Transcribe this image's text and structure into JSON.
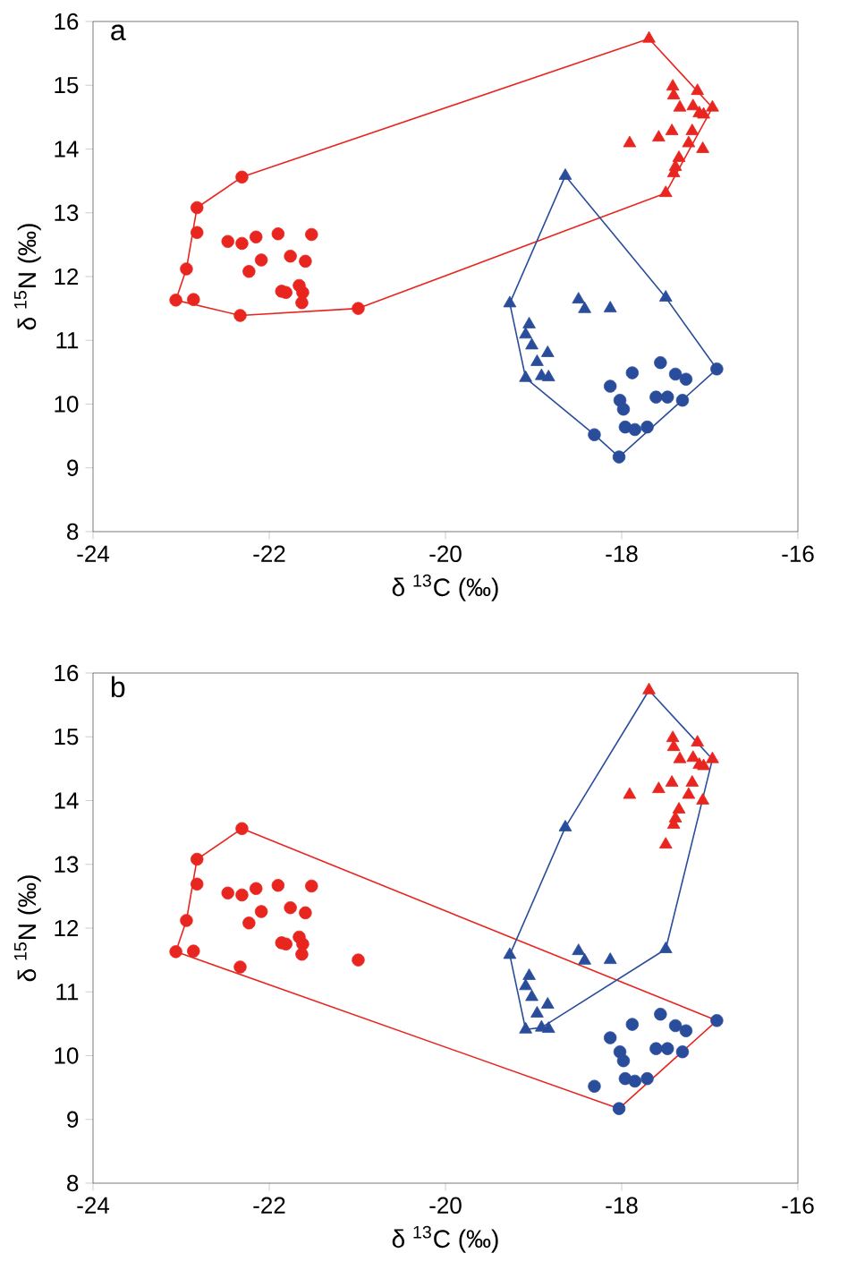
{
  "chart_data": [
    {
      "type": "scatter",
      "title": "a",
      "xlabel": "δ $^{13}$C (‰)",
      "ylabel": "δ $^{15}$N (‰)",
      "xlim": [
        -24,
        -16
      ],
      "xticks": [
        -24,
        -22,
        -20,
        -18,
        -16
      ],
      "ylim": [
        8,
        16
      ],
      "yticks": [
        8,
        9,
        10,
        11,
        12,
        13,
        14,
        15,
        16
      ],
      "grid": false,
      "series": [
        {
          "type": "line",
          "marker": "none",
          "line_style": "solid",
          "color": "#e8251f",
          "x": [
            -23.06,
            -22.94,
            -22.82,
            -22.31,
            -17.69,
            -16.97
          ],
          "values": [
            11.63,
            12.12,
            13.08,
            13.56,
            15.73,
            14.65
          ]
        },
        {
          "type": "line",
          "marker": "none",
          "line_style": "solid",
          "color": "#e8251f",
          "x": [
            -23.06,
            -22.33,
            -20.99,
            -17.5,
            -16.97
          ],
          "values": [
            11.63,
            11.39,
            11.5,
            13.31,
            14.65
          ]
        },
        {
          "type": "line",
          "marker": "none",
          "line_style": "solid",
          "color": "#2a4d9b",
          "x": [
            -19.27,
            -18.64,
            -17.5,
            -16.92
          ],
          "values": [
            11.58,
            13.58,
            11.67,
            10.55
          ]
        },
        {
          "type": "line",
          "marker": "none",
          "line_style": "solid",
          "color": "#2a4d9b",
          "x": [
            -19.27,
            -19.09,
            -18.31,
            -18.03,
            -16.92
          ],
          "values": [
            11.58,
            10.41,
            9.52,
            9.17,
            10.55
          ]
        },
        {
          "marker": "circle",
          "color": "#e8251f",
          "x": [
            -22.31,
            -22.82,
            -22.82,
            -22.94,
            -23.06,
            -22.86,
            -22.33,
            -20.99,
            -22.47,
            -22.31,
            -22.15,
            -21.9,
            -21.52,
            -22.09,
            -22.23,
            -21.76,
            -21.59,
            -21.86,
            -21.81,
            -21.66,
            -21.62,
            -21.63
          ],
          "values": [
            13.56,
            13.08,
            12.69,
            12.12,
            11.63,
            11.64,
            11.39,
            11.5,
            12.55,
            12.52,
            12.62,
            12.67,
            12.66,
            12.26,
            12.08,
            12.32,
            12.24,
            11.77,
            11.75,
            11.86,
            11.75,
            11.59
          ]
        },
        {
          "marker": "triangle",
          "color": "#e8251f",
          "x": [
            -17.69,
            -17.42,
            -17.14,
            -17.41,
            -17.34,
            -17.19,
            -17.12,
            -16.97,
            -17.07,
            -17.91,
            -17.58,
            -17.43,
            -17.2,
            -17.24,
            -17.08,
            -17.35,
            -17.39,
            -17.41,
            -17.5
          ],
          "values": [
            15.73,
            14.98,
            14.91,
            14.84,
            14.65,
            14.67,
            14.56,
            14.65,
            14.54,
            14.09,
            14.18,
            14.28,
            14.28,
            14.09,
            14.0,
            13.86,
            13.72,
            13.62,
            13.31
          ]
        },
        {
          "marker": "triangle",
          "color": "#2a4d9b",
          "x": [
            -18.64,
            -19.27,
            -18.49,
            -18.42,
            -18.13,
            -17.5,
            -19.05,
            -19.09,
            -19.02,
            -18.84,
            -18.96,
            -19.09,
            -18.91,
            -18.83
          ],
          "values": [
            13.58,
            11.58,
            11.64,
            11.49,
            11.5,
            11.67,
            11.25,
            11.09,
            10.92,
            10.8,
            10.66,
            10.41,
            10.44,
            10.42
          ]
        },
        {
          "marker": "circle",
          "color": "#2a4d9b",
          "x": [
            -16.92,
            -17.56,
            -17.88,
            -17.39,
            -17.27,
            -18.13,
            -17.61,
            -17.48,
            -17.31,
            -18.02,
            -17.98,
            -17.96,
            -17.85,
            -17.71,
            -18.31,
            -18.03
          ],
          "values": [
            10.55,
            10.65,
            10.49,
            10.47,
            10.39,
            10.28,
            10.11,
            10.11,
            10.06,
            10.06,
            9.92,
            9.64,
            9.6,
            9.64,
            9.52,
            9.17
          ]
        }
      ]
    },
    {
      "type": "scatter",
      "title": "b",
      "xlabel": "δ $^{13}$C (‰)",
      "ylabel": "δ $^{15}$N (‰)",
      "xlim": [
        -24,
        -16
      ],
      "xticks": [
        -24,
        -22,
        -20,
        -18,
        -16
      ],
      "ylim": [
        8,
        16
      ],
      "yticks": [
        8,
        9,
        10,
        11,
        12,
        13,
        14,
        15,
        16
      ],
      "grid": false,
      "series": [
        {
          "type": "line",
          "marker": "none",
          "line_style": "solid",
          "color": "#e8251f",
          "x": [
            -23.06,
            -22.94,
            -22.82,
            -22.31,
            -16.92
          ],
          "values": [
            11.63,
            12.12,
            13.08,
            13.56,
            10.55
          ]
        },
        {
          "type": "line",
          "marker": "none",
          "line_style": "solid",
          "color": "#e8251f",
          "x": [
            -23.06,
            -18.03,
            -16.92
          ],
          "values": [
            11.63,
            9.17,
            10.55
          ]
        },
        {
          "type": "line",
          "marker": "none",
          "line_style": "solid",
          "color": "#2a4d9b",
          "x": [
            -19.27,
            -18.64,
            -17.69,
            -16.97
          ],
          "values": [
            11.58,
            13.58,
            15.73,
            14.65
          ]
        },
        {
          "type": "line",
          "marker": "none",
          "line_style": "solid",
          "color": "#2a4d9b",
          "x": [
            -19.27,
            -19.09,
            -18.91,
            -17.5,
            -16.97
          ],
          "values": [
            11.58,
            10.41,
            10.44,
            11.67,
            14.65
          ]
        },
        {
          "marker": "circle",
          "color": "#e8251f",
          "x": [
            -22.31,
            -22.82,
            -22.82,
            -22.94,
            -23.06,
            -22.86,
            -22.33,
            -20.99,
            -22.47,
            -22.31,
            -22.15,
            -21.9,
            -21.52,
            -22.09,
            -22.23,
            -21.76,
            -21.59,
            -21.86,
            -21.81,
            -21.66,
            -21.62,
            -21.63
          ],
          "values": [
            13.56,
            13.08,
            12.69,
            12.12,
            11.63,
            11.64,
            11.39,
            11.5,
            12.55,
            12.52,
            12.62,
            12.67,
            12.66,
            12.26,
            12.08,
            12.32,
            12.24,
            11.77,
            11.75,
            11.86,
            11.75,
            11.59
          ]
        },
        {
          "marker": "triangle",
          "color": "#e8251f",
          "x": [
            -17.69,
            -17.42,
            -17.14,
            -17.41,
            -17.34,
            -17.19,
            -17.12,
            -16.97,
            -17.07,
            -17.91,
            -17.58,
            -17.43,
            -17.2,
            -17.24,
            -17.08,
            -17.35,
            -17.39,
            -17.41,
            -17.5
          ],
          "values": [
            15.73,
            14.98,
            14.91,
            14.84,
            14.65,
            14.67,
            14.56,
            14.65,
            14.54,
            14.09,
            14.18,
            14.28,
            14.28,
            14.09,
            14.0,
            13.86,
            13.72,
            13.62,
            13.31
          ]
        },
        {
          "marker": "triangle",
          "color": "#2a4d9b",
          "x": [
            -18.64,
            -19.27,
            -18.49,
            -18.42,
            -18.13,
            -17.5,
            -19.05,
            -19.09,
            -19.02,
            -18.84,
            -18.96,
            -19.09,
            -18.91,
            -18.83
          ],
          "values": [
            13.58,
            11.58,
            11.64,
            11.49,
            11.5,
            11.67,
            11.25,
            11.09,
            10.92,
            10.8,
            10.66,
            10.41,
            10.44,
            10.42
          ]
        },
        {
          "marker": "circle",
          "color": "#2a4d9b",
          "x": [
            -16.92,
            -17.56,
            -17.88,
            -17.39,
            -17.27,
            -18.13,
            -17.61,
            -17.48,
            -17.31,
            -18.02,
            -17.98,
            -17.96,
            -17.85,
            -17.71,
            -18.31,
            -18.03
          ],
          "values": [
            10.55,
            10.65,
            10.49,
            10.47,
            10.39,
            10.28,
            10.11,
            10.11,
            10.06,
            10.06,
            9.92,
            9.64,
            9.6,
            9.64,
            9.52,
            9.17
          ]
        }
      ]
    }
  ]
}
